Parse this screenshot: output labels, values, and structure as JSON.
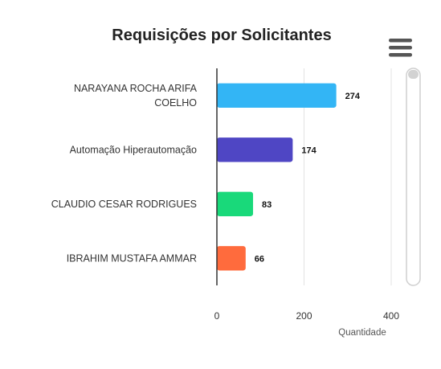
{
  "chart_data": {
    "type": "bar",
    "orientation": "horizontal",
    "title": "Requisições por Solicitantes",
    "xlabel": "Quantidade",
    "ylabel": "",
    "categories": [
      [
        "NARAYANA ROCHA ARIFA",
        "COELHO"
      ],
      [
        "Automação Hiperautomação"
      ],
      [
        "CLAUDIO CESAR RODRIGUES"
      ],
      [
        "IBRAHIM MUSTAFA AMMAR"
      ]
    ],
    "values": [
      274,
      174,
      83,
      66
    ],
    "colors": [
      "#33b5f5",
      "#4f46c4",
      "#19d97a",
      "#ff6b3d"
    ],
    "xlim": [
      0,
      400
    ],
    "ticks": [
      0,
      200,
      400
    ],
    "tick_labels": [
      "0",
      "200",
      "400"
    ],
    "grid": true,
    "legend": "none"
  },
  "controls": {
    "menu_icon": "hamburger-menu-icon",
    "scrollbar": "vertical-scrollbar"
  }
}
